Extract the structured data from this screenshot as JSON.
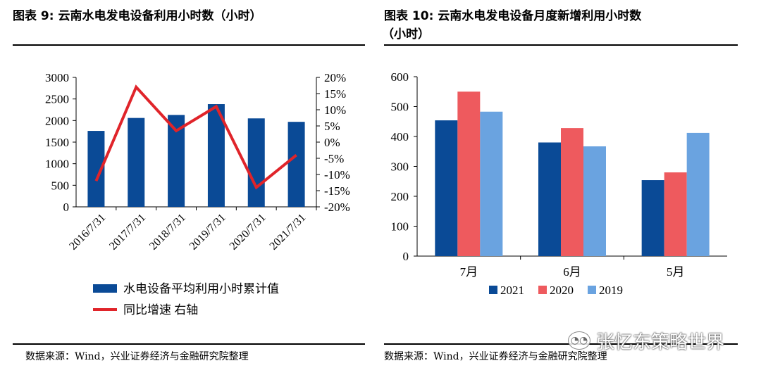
{
  "left": {
    "title": "图表 9: 云南水电发电设备利用小时数（小时）",
    "source": "数据来源：Wind，兴业证券经济与金融研究院整理"
  },
  "right": {
    "title_line1": "图表 10: 云南水电发电设备月度新增利用小时数",
    "title_line2": "（小时）",
    "source": "数据来源：Wind，兴业证券经济与金融研究院整理"
  },
  "watermark": {
    "text": "张忆东策略世界",
    "icon": "wechat-icon"
  },
  "chart_data": [
    {
      "type": "bar",
      "categories": [
        "2016/7/31",
        "2017/7/31",
        "2018/7/31",
        "2019/7/31",
        "2020/7/31",
        "2021/7/31"
      ],
      "series": [
        {
          "name": "水电设备平均利用小时累计值",
          "type": "bar",
          "axis": "left",
          "color": "#0a4a96",
          "values": [
            1760,
            2060,
            2130,
            2380,
            2050,
            1970
          ]
        },
        {
          "name": "同比增速 右轴",
          "type": "line",
          "axis": "right",
          "color": "#e0242a",
          "values": [
            -12,
            17,
            3.5,
            11,
            -14,
            -4
          ]
        }
      ],
      "ylim": [
        0,
        3000
      ],
      "yticks": [
        "0",
        "500",
        "1000",
        "1500",
        "2000",
        "2500",
        "3000"
      ],
      "y2lim": [
        -20,
        20
      ],
      "y2ticks": [
        "-20%",
        "-15%",
        "-10%",
        "-5%",
        "0%",
        "5%",
        "10%",
        "15%",
        "20%"
      ],
      "legend": "bottom"
    },
    {
      "type": "bar",
      "categories": [
        "7月",
        "6月",
        "5月"
      ],
      "series": [
        {
          "name": "2021",
          "color": "#0a4a96",
          "values": [
            454,
            380,
            254
          ]
        },
        {
          "name": "2020",
          "color": "#ee5a5e",
          "values": [
            550,
            428,
            280
          ]
        },
        {
          "name": "2019",
          "color": "#6aa3e0",
          "values": [
            483,
            367,
            412
          ]
        }
      ],
      "ylim": [
        0,
        600
      ],
      "yticks": [
        "0",
        "100",
        "200",
        "300",
        "400",
        "500",
        "600"
      ],
      "legend": "bottom"
    }
  ]
}
